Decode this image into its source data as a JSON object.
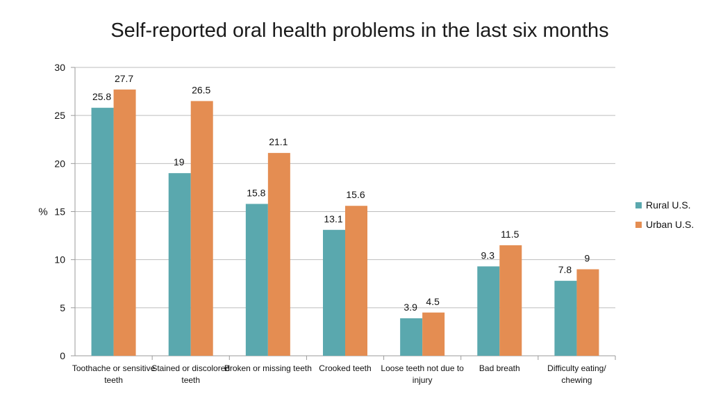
{
  "chart_data": {
    "type": "bar",
    "title": "Self-reported oral health problems in the last six months",
    "xlabel": "",
    "ylabel": "%",
    "ylim": [
      0,
      30
    ],
    "yticks": [
      "0",
      "5",
      "10",
      "15",
      "20",
      "25",
      "30"
    ],
    "grid": true,
    "legend_position": "right",
    "categories": [
      [
        "Toothache or sensitive",
        "teeth"
      ],
      [
        "Stained or discolored",
        "teeth"
      ],
      [
        "Broken or missing teeth"
      ],
      [
        "Crooked teeth"
      ],
      [
        "Loose teeth not due to",
        "injury"
      ],
      [
        "Bad breath"
      ],
      [
        "Difficulty eating/",
        "chewing"
      ]
    ],
    "series": [
      {
        "name": "Rural U.S.",
        "color": "#5aa8ae",
        "values": [
          25.8,
          19,
          15.8,
          13.1,
          3.9,
          9.3,
          7.8
        ],
        "labels": [
          "25.8",
          "19",
          "15.8",
          "13.1",
          "3.9",
          "9.3",
          "7.8"
        ]
      },
      {
        "name": "Urban U.S.",
        "color": "#e48d52",
        "values": [
          27.7,
          26.5,
          21.1,
          15.6,
          4.5,
          11.5,
          9
        ],
        "labels": [
          "27.7",
          "26.5",
          "21.1",
          "15.6",
          "4.5",
          "11.5",
          "9"
        ]
      }
    ]
  }
}
